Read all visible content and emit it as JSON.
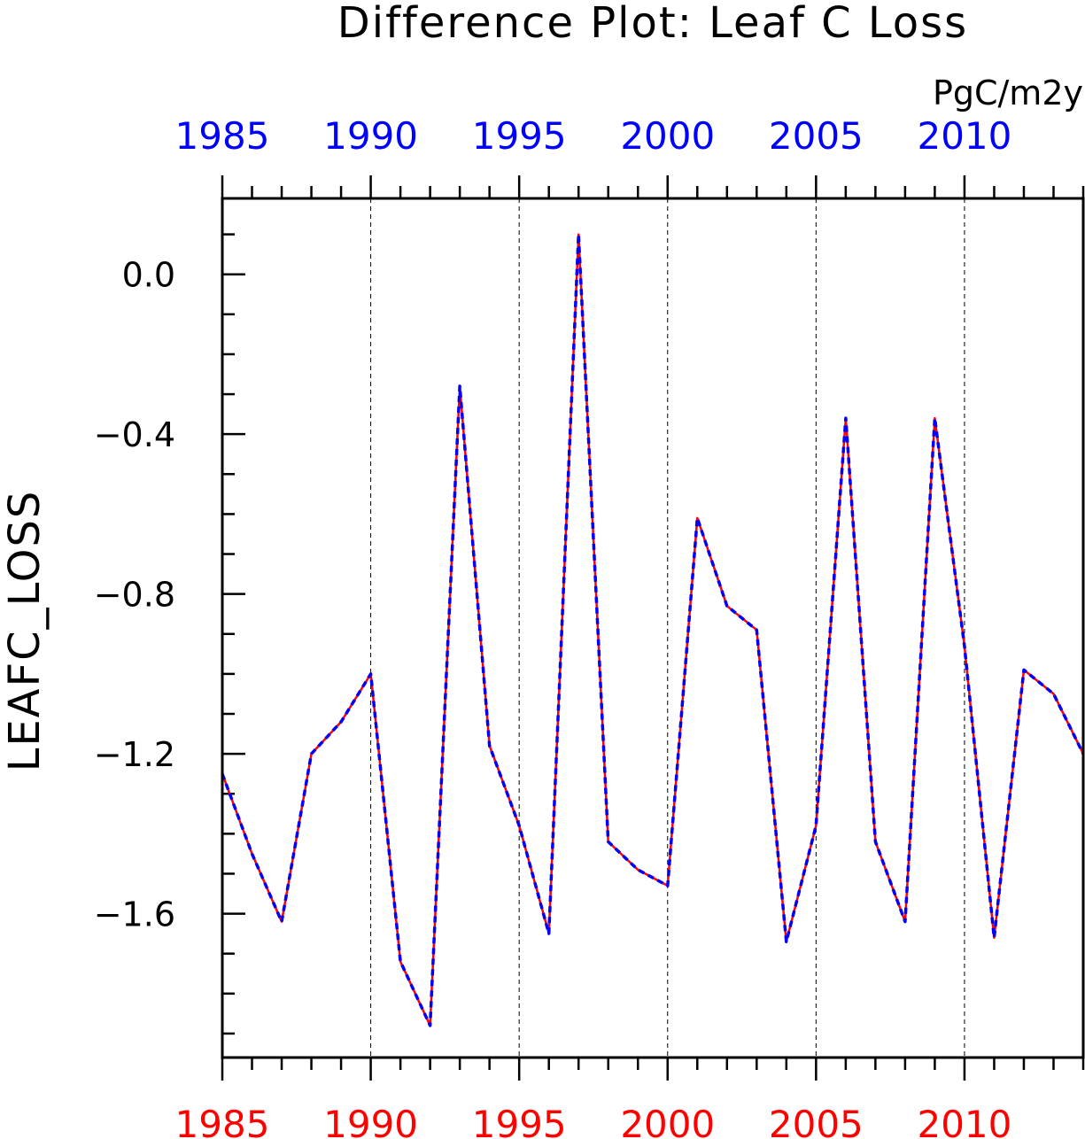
{
  "chart_data": {
    "type": "line",
    "title": "Difference Plot: Leaf C Loss",
    "units": "PgC/m2y",
    "ylabel": "LEAFC_LOSS",
    "xlabel": "",
    "xlim": [
      1985,
      2014
    ],
    "ylim": [
      -1.96,
      0.19
    ],
    "x_ticks_major": [
      1985,
      1990,
      1995,
      2000,
      2005,
      2010
    ],
    "x_tick_labels": [
      "1985",
      "1990",
      "1995",
      "2000",
      "2005",
      "2010"
    ],
    "y_ticks_major": [
      0.0,
      -0.4,
      -0.8,
      -1.2,
      -1.6
    ],
    "y_tick_labels": [
      "0.0",
      "−0.4",
      "−0.8",
      "−1.2",
      "−1.6"
    ],
    "top_axis_label_color": "#0000ff",
    "bottom_axis_label_color": "#ff0000",
    "vertical_gridlines": "dashed at major x ticks",
    "x": [
      1985,
      1986,
      1987,
      1988,
      1989,
      1990,
      1991,
      1992,
      1993,
      1994,
      1995,
      1996,
      1997,
      1998,
      1999,
      2000,
      2001,
      2002,
      2003,
      2004,
      2005,
      2006,
      2007,
      2008,
      2009,
      2010,
      2011,
      2012,
      2013,
      2014
    ],
    "series": [
      {
        "color": "#ff0000",
        "style": "solid",
        "values": [
          -1.25,
          -1.45,
          -1.62,
          -1.2,
          -1.12,
          -1.0,
          -1.72,
          -1.88,
          -0.28,
          -1.18,
          -1.38,
          -1.65,
          0.1,
          -1.42,
          -1.49,
          -1.53,
          -0.61,
          -0.83,
          -0.89,
          -1.67,
          -1.38,
          -0.36,
          -1.42,
          -1.62,
          -0.36,
          -0.93,
          -1.66,
          -0.99,
          -1.05,
          -1.2
        ]
      },
      {
        "color": "#0000ff",
        "style": "dashed",
        "values": [
          -1.25,
          -1.45,
          -1.62,
          -1.2,
          -1.12,
          -1.0,
          -1.72,
          -1.88,
          -0.28,
          -1.18,
          -1.38,
          -1.65,
          0.1,
          -1.42,
          -1.49,
          -1.53,
          -0.61,
          -0.83,
          -0.89,
          -1.67,
          -1.38,
          -0.36,
          -1.42,
          -1.62,
          -0.36,
          -0.93,
          -1.66,
          -0.99,
          -1.05,
          -1.2
        ]
      }
    ]
  }
}
